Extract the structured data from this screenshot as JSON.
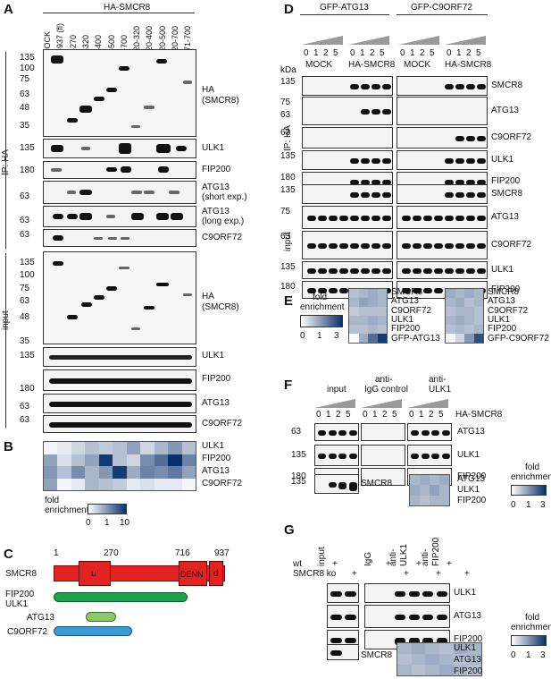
{
  "panels": {
    "A": {
      "letter": "A",
      "header": "HA-SMCR8",
      "lanes": [
        "MOCK",
        "1-937 (fl)",
        "1-270",
        "1-320",
        "1-400",
        "1-500",
        "1-700",
        "120-320",
        "120-400",
        "120-500",
        "120-700",
        "271-700"
      ],
      "side_ip": "IP: HA",
      "side_input": "input",
      "ip_rows": [
        {
          "label": "HA\n(SMCR8)",
          "label1": "HA",
          "label2": "(SMCR8)",
          "markers": [
            "135",
            "100",
            "75",
            "63",
            "48",
            "35"
          ]
        },
        {
          "label1": "ULK1",
          "label2": "",
          "markers": [
            "135"
          ]
        },
        {
          "label1": "FIP200",
          "label2": "",
          "markers": [
            "180"
          ]
        },
        {
          "label1": "ATG13",
          "label2": "(short exp.)",
          "markers": [
            "63"
          ]
        },
        {
          "label1": "ATG13",
          "label2": "(long exp.)",
          "markers": [
            "63"
          ]
        },
        {
          "label1": "C9ORF72",
          "label2": "",
          "markers": [
            "63"
          ]
        }
      ],
      "input_rows": [
        {
          "label1": "HA",
          "label2": "(SMCR8)",
          "markers": [
            "135",
            "100",
            "75",
            "63",
            "48",
            "35"
          ]
        },
        {
          "label1": "ULK1",
          "label2": "",
          "markers": [
            "135"
          ]
        },
        {
          "label1": "FIP200",
          "label2": "",
          "markers": [
            "180"
          ]
        },
        {
          "label1": "ATG13",
          "label2": "",
          "markers": [
            "63"
          ]
        },
        {
          "label1": "C9ORF72",
          "label2": "",
          "markers": [
            "63"
          ]
        }
      ]
    },
    "B": {
      "letter": "B",
      "rows": [
        "ULK1",
        "FIP200",
        "ATG13",
        "C9ORF72"
      ],
      "legend_title": "fold\nenrichment",
      "legend_title1": "fold",
      "legend_title2": "enrichment",
      "legend_ticks": [
        "0",
        "1",
        "10"
      ]
    },
    "C": {
      "letter": "C",
      "protein": "SMCR8",
      "positions": [
        "1",
        "270",
        "716",
        "937"
      ],
      "domains": [
        "u",
        "DENN",
        "d"
      ],
      "binders": [
        "FIP200",
        "ULK1",
        "ATG13",
        "C9ORF72"
      ]
    },
    "D": {
      "letter": "D",
      "groups": [
        "GFP-ATG13",
        "GFP-C9ORF72"
      ],
      "titration": [
        "0",
        "1",
        "2",
        "5"
      ],
      "conditions": [
        "MOCK",
        "HA-SMCR8",
        "MOCK",
        "HA-SMCR8"
      ],
      "kda": "kDa",
      "side_ip": "IP: HA",
      "side_input": "input",
      "ip_rows": [
        {
          "label": "SMCR8",
          "markers": [
            "135"
          ]
        },
        {
          "label": "ATG13",
          "markers": [
            "75",
            "63"
          ]
        },
        {
          "label": "C9ORF72",
          "markers": [
            "63"
          ]
        },
        {
          "label": "ULK1",
          "markers": [
            "135"
          ]
        },
        {
          "label": "FIP200",
          "markers": [
            "180"
          ]
        }
      ],
      "input_rows": [
        {
          "label": "SMCR8",
          "markers": [
            "135"
          ]
        },
        {
          "label": "ATG13",
          "markers": [
            "75"
          ]
        },
        {
          "label": "C9ORF72",
          "markers": [
            "63"
          ]
        },
        {
          "label": "ULK1",
          "markers": [
            "135"
          ]
        },
        {
          "label": "FIP200",
          "markers": [
            "180"
          ]
        }
      ]
    },
    "E": {
      "letter": "E",
      "legend_title1": "fold",
      "legend_title2": "enrichment",
      "legend_ticks": [
        "0",
        "1",
        "3"
      ],
      "rows_left": [
        "SMCR8",
        "ATG13",
        "C9ORF72",
        "ULK1",
        "FIP200",
        "GFP-ATG13"
      ],
      "rows_right": [
        "SMCR8",
        "ATG13",
        "C9ORF72",
        "ULK1",
        "FIP200",
        "GFP-C9ORF72"
      ]
    },
    "F": {
      "letter": "F",
      "groups": [
        "input",
        "anti-\nIgG control",
        "anti-\nULK1"
      ],
      "group1": "input",
      "group2a": "anti-",
      "group2b": "IgG control",
      "group3a": "anti-",
      "group3b": "ULK1",
      "titration": [
        "0",
        "1",
        "2",
        "5"
      ],
      "titration_label": "HA-SMCR8",
      "rows": [
        {
          "label": "ATG13",
          "marker": "63"
        },
        {
          "label": "ULK1",
          "marker": "135"
        },
        {
          "label": "FIP200",
          "marker": "180"
        }
      ],
      "smcr8_label": "SMCR8",
      "smcr8_marker": "135",
      "hm_rows": [
        "ATG13",
        "ULK1",
        "FIP200"
      ],
      "legend_title1": "fold",
      "legend_title2": "enrichment",
      "legend_ticks": [
        "0",
        "1",
        "3"
      ]
    },
    "G": {
      "letter": "G",
      "lanes_top": [
        "input",
        "IgG",
        "anti-\nULK1",
        "anti-\nFIP200"
      ],
      "lane_input": "input",
      "lane_igg": "IgG",
      "lane_ulk1a": "anti-",
      "lane_ulk1b": "ULK1",
      "lane_fip200a": "anti-",
      "lane_fip200b": "FIP200",
      "geno": [
        "wt",
        "SMCR8 ko"
      ],
      "plus": "+",
      "rows": [
        "ULK1",
        "ATG13",
        "FIP200"
      ],
      "smcr8_label": "SMCR8",
      "hm_rows": [
        "ULK1",
        "ATG13",
        "FIP200"
      ],
      "legend_title1": "fold",
      "legend_title2": "enrichment",
      "legend_ticks": [
        "0",
        "1",
        "3"
      ]
    }
  },
  "colors": {
    "heatmap_low": "#ffffff",
    "heatmap_high": "#08306b",
    "domain_red": "#e32222",
    "bar_green": "#1aa34a",
    "bar_lightgreen": "#8dc96a",
    "bar_blue": "#3a9bd9"
  }
}
